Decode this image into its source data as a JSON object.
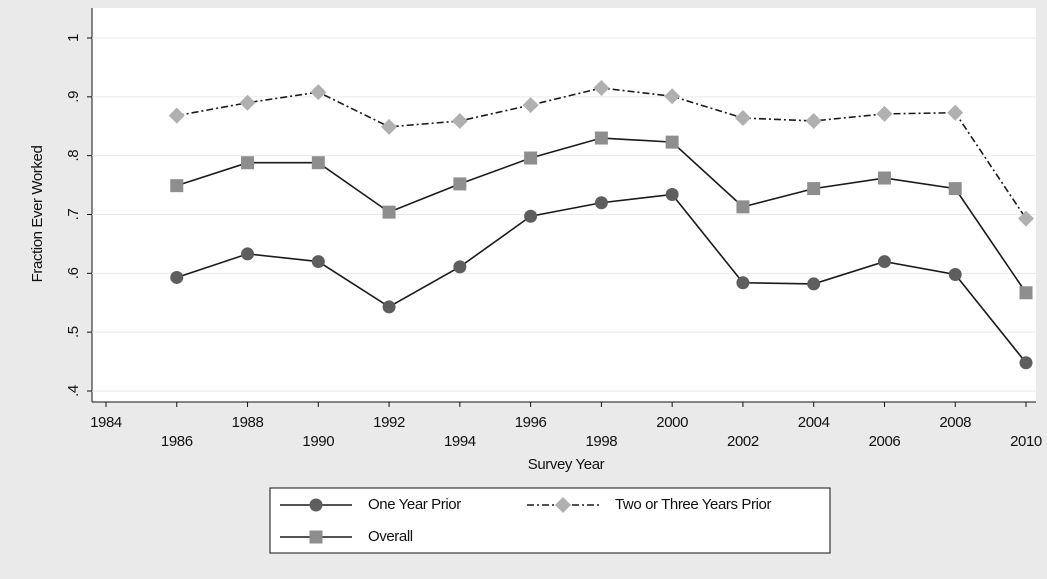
{
  "chart_data": {
    "type": "line",
    "y_label": "Fraction Ever Worked",
    "x_label": "Survey Year",
    "x": [
      1986,
      1988,
      1990,
      1992,
      1994,
      1996,
      1998,
      2000,
      2002,
      2004,
      2006,
      2008,
      2010
    ],
    "series": [
      {
        "name": "One Year Prior",
        "color": "#5e5e5e",
        "marker": "circle",
        "line_style": "solid",
        "values": [
          0.593,
          0.633,
          0.62,
          0.543,
          0.611,
          0.697,
          0.72,
          0.734,
          0.584,
          0.582,
          0.62,
          0.598,
          0.448
        ]
      },
      {
        "name": "Two or Three Years Prior",
        "color": "#b0b0b0",
        "marker": "diamond",
        "line_style": "dashdot",
        "values": [
          0.868,
          0.89,
          0.908,
          0.849,
          0.859,
          0.886,
          0.915,
          0.901,
          0.864,
          0.859,
          0.871,
          0.873,
          0.693
        ]
      },
      {
        "name": "Overall",
        "color": "#8e8e8e",
        "marker": "square",
        "line_style": "solid",
        "values": [
          0.749,
          0.788,
          0.788,
          0.704,
          0.752,
          0.796,
          0.83,
          0.823,
          0.713,
          0.744,
          0.762,
          0.744,
          0.567
        ]
      }
    ],
    "xlim": [
      1984,
      2010
    ],
    "xticks": [
      1984,
      1986,
      1988,
      1990,
      1992,
      1994,
      1996,
      1998,
      2000,
      2002,
      2004,
      2006,
      2008,
      2010
    ],
    "ylim": [
      0.4,
      1
    ],
    "yticks": [
      {
        "value": 0.4,
        "label": ".4"
      },
      {
        "value": 0.5,
        "label": ".5"
      },
      {
        "value": 0.6,
        "label": ".6"
      },
      {
        "value": 0.7,
        "label": ".7"
      },
      {
        "value": 0.8,
        "label": ".8"
      },
      {
        "value": 0.9,
        "label": ".9"
      },
      1
    ],
    "grid": true,
    "legend": "bottom"
  }
}
